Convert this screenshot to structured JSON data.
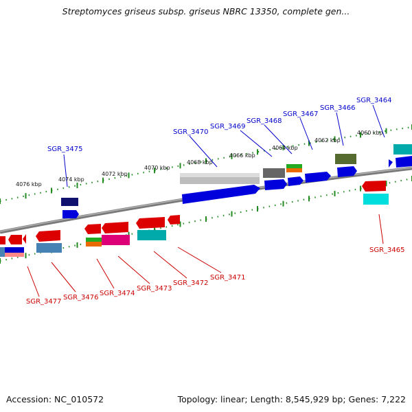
{
  "header": {
    "title": "Streptomyces griseus subsp. griseus NBRC 13350, complete gen..."
  },
  "footer": {
    "accession": "Accession: NC_010572",
    "topology": "Topology: linear; Length: 8,545,929 bp; Genes: 7,222"
  },
  "ruler_labels": [
    "4076 kbp",
    "4074 kbp",
    "4072 kbp",
    "4070 kbp",
    "4068 kbp",
    "4066 kbp",
    "4064 kbp",
    "4062 kbp",
    "4060 kbp"
  ],
  "gene_labels_top": [
    "SGR_3475",
    "SGR_3470",
    "SGR_3469",
    "SGR_3468",
    "SGR_3467",
    "SGR_3466",
    "SGR_3464"
  ],
  "gene_labels_bottom": [
    "SGR_3477",
    "SGR_3476",
    "SGR_3474",
    "SGR_3473",
    "SGR_3472",
    "SGR_3471",
    "SGR_3465"
  ],
  "colors": {
    "plus_strand_label": "#0000cc",
    "minus_strand_label": "#cc0000",
    "ruler_tick": "#228b22",
    "backbone": "#808080"
  }
}
